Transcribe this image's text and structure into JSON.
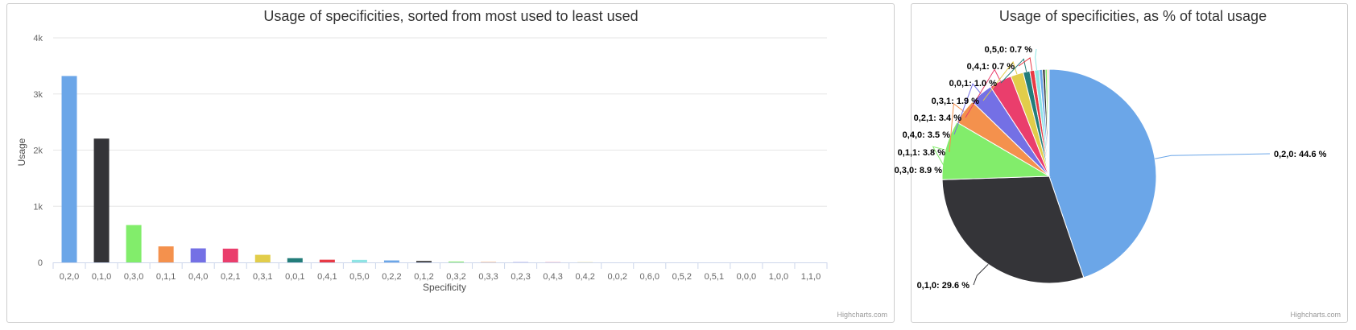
{
  "colors": [
    "#6ba6e8",
    "#343438",
    "#82ed6b",
    "#f4914d",
    "#7470e5",
    "#ea3e6c",
    "#e2cd4a",
    "#237d7a",
    "#e83a45",
    "#8ee4e4"
  ],
  "credits": "Highcharts.com",
  "chart_data": [
    {
      "type": "bar",
      "title": "Usage of specificities, sorted from most used to least used",
      "xlabel": "Specificity",
      "ylabel": "Usage",
      "ylim": [
        0,
        4000
      ],
      "yticks": [
        "0",
        "1k",
        "2k",
        "3k",
        "4k"
      ],
      "grid": true,
      "categories": [
        "0,2,0",
        "0,1,0",
        "0,3,0",
        "0,1,1",
        "0,4,0",
        "0,2,1",
        "0,3,1",
        "0,0,1",
        "0,4,1",
        "0,5,0",
        "0,2,2",
        "0,1,2",
        "0,3,2",
        "0,3,3",
        "0,2,3",
        "0,4,3",
        "0,4,2",
        "0,0,2",
        "0,6,0",
        "0,5,2",
        "0,5,1",
        "0,0,0",
        "1,0,0",
        "1,1,0"
      ],
      "values": [
        3320,
        2205,
        665,
        285,
        250,
        245,
        135,
        75,
        48,
        45,
        35,
        25,
        15,
        6,
        4,
        3,
        3,
        2,
        2,
        2,
        1,
        1,
        1,
        1
      ]
    },
    {
      "type": "pie",
      "title": "Usage of specificities, as % of total usage",
      "slices": [
        {
          "label": "0,2,0: 44.6 %",
          "value": 44.6
        },
        {
          "label": "0,1,0: 29.6 %",
          "value": 29.6
        },
        {
          "label": "0,3,0: 8.9 %",
          "value": 8.9
        },
        {
          "label": "0,1,1: 3.8 %",
          "value": 3.8
        },
        {
          "label": "0,4,0: 3.5 %",
          "value": 3.5
        },
        {
          "label": "0,2,1: 3.4 %",
          "value": 3.4
        },
        {
          "label": "0,3,1: 1.9 %",
          "value": 1.9
        },
        {
          "label": "0,0,1: 1.0 %",
          "value": 1.0
        },
        {
          "label": "0,4,1: 0.7 %",
          "value": 0.7
        },
        {
          "label": "0,5,0: 0.7 %",
          "value": 0.7
        },
        {
          "label": "",
          "value": 0.5
        },
        {
          "label": "",
          "value": 0.4
        },
        {
          "label": "",
          "value": 0.3
        },
        {
          "label": "",
          "value": 0.2
        },
        {
          "label": "",
          "value": 0.1
        }
      ]
    }
  ]
}
